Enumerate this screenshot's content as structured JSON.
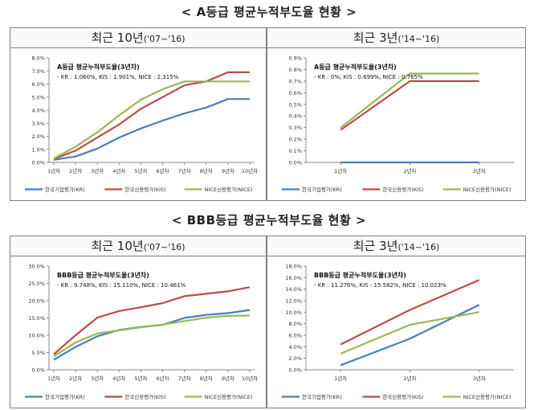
{
  "sections": [
    {
      "title": "< A등급 평균누적부도율 현황 >"
    },
    {
      "title": "< BBB등급 평균누적부도율 현황 >"
    }
  ],
  "panels": [
    {
      "head_main": "최근 10년",
      "head_sub": "('07~'16)"
    },
    {
      "head_main": "최근 3년",
      "head_sub": "('14~'16)"
    },
    {
      "head_main": "최근 10년",
      "head_sub": "('07~'16)"
    },
    {
      "head_main": "최근 3년",
      "head_sub": "('14~'16)"
    }
  ],
  "colors": {
    "KR": "#4a7ebb",
    "KIS": "#be4b48",
    "NICE": "#98b954"
  },
  "chart_data": [
    {
      "type": "line",
      "title": "A등급 평균누적부도율(3년차)",
      "subtitle": "- KR : 1.060%, KIS : 1.901%, NICE : 2.315%",
      "categories": [
        "1년차",
        "2년차",
        "3년차",
        "4년차",
        "5년차",
        "6년차",
        "7년차",
        "8년차",
        "9년차",
        "10년차"
      ],
      "yticks": [
        "0.0%",
        "1.0%",
        "2.0%",
        "3.0%",
        "4.0%",
        "5.0%",
        "6.0%",
        "7.0%",
        "8.0%"
      ],
      "ylim": [
        0,
        8
      ],
      "legend_position": "bottom",
      "series": [
        {
          "name": "한국기업평가(KR)",
          "key": "KR",
          "values": [
            0.2,
            0.45,
            1.06,
            1.9,
            2.6,
            3.2,
            3.75,
            4.2,
            4.85,
            4.85
          ]
        },
        {
          "name": "한국신용평가(KIS)",
          "key": "KIS",
          "values": [
            0.25,
            0.9,
            1.9,
            2.9,
            4.1,
            5.0,
            5.9,
            6.2,
            6.9,
            6.9
          ]
        },
        {
          "name": "NICE신용평가(NICE)",
          "key": "NICE",
          "values": [
            0.3,
            1.2,
            2.3,
            3.6,
            4.8,
            5.6,
            6.2,
            6.2,
            6.2,
            6.2
          ]
        }
      ]
    },
    {
      "type": "line",
      "title": "A등급 평균누적부도율(3년차)",
      "subtitle": "- KR : 0%, KIS : 0.699%, NICE : 0.765%",
      "categories": [
        "1년차",
        "2년차",
        "3년차"
      ],
      "yticks": [
        "0.0%",
        "0.1%",
        "0.2%",
        "0.3%",
        "0.4%",
        "0.5%",
        "0.6%",
        "0.7%",
        "0.8%",
        "0.9%"
      ],
      "ylim": [
        0,
        0.9
      ],
      "legend_position": "bottom",
      "series": [
        {
          "name": "한국기업평가(KR)",
          "key": "KR",
          "values": [
            0,
            0,
            0
          ]
        },
        {
          "name": "한국신용평가(KIS)",
          "key": "KIS",
          "values": [
            0.28,
            0.7,
            0.7
          ]
        },
        {
          "name": "NICE신용평가(NICE)",
          "key": "NICE",
          "values": [
            0.3,
            0.765,
            0.765
          ]
        }
      ]
    },
    {
      "type": "line",
      "title": "BBB등급 평균누적부도율(3년차)",
      "subtitle": "- KR : 9.748%, KIS : 15.110%, NICE : 10.461%",
      "categories": [
        "1년차",
        "2년차",
        "3년차",
        "4년차",
        "5년차",
        "6년차",
        "7년차",
        "8년차",
        "9년차",
        "10년차"
      ],
      "yticks": [
        "0.0%",
        "5.0%",
        "10.0%",
        "15.0%",
        "20.0%",
        "25.0%",
        "30.0%"
      ],
      "ylim": [
        0,
        30
      ],
      "legend_position": "bottom",
      "series": [
        {
          "name": "한국기업평가(KR)",
          "key": "KR",
          "values": [
            2.9,
            6.6,
            9.7,
            11.5,
            12.4,
            13.0,
            15.0,
            15.9,
            16.4,
            17.3
          ]
        },
        {
          "name": "한국신용평가(KIS)",
          "key": "KIS",
          "values": [
            4.5,
            10.0,
            15.1,
            17.0,
            18.1,
            19.3,
            21.3,
            22.0,
            22.7,
            23.9
          ]
        },
        {
          "name": "NICE신용평가(NICE)",
          "key": "NICE",
          "values": [
            3.9,
            7.9,
            10.5,
            11.4,
            12.3,
            13.1,
            14.1,
            15.1,
            15.6,
            15.7
          ]
        }
      ]
    },
    {
      "type": "line",
      "title": "BBB등급 평균누적부도율(3년차)",
      "subtitle": "- KR : 11.276%, KIS : 15.582%, NICE : 10.023%",
      "categories": [
        "1년차",
        "2년차",
        "3년차"
      ],
      "yticks": [
        "0.0%",
        "2.0%",
        "4.0%",
        "6.0%",
        "8.0%",
        "10.0%",
        "12.0%",
        "14.0%",
        "16.0%",
        "18.0%"
      ],
      "ylim": [
        0,
        18
      ],
      "legend_position": "bottom",
      "series": [
        {
          "name": "한국기업평가(KR)",
          "key": "KR",
          "values": [
            0.8,
            5.4,
            11.276
          ]
        },
        {
          "name": "한국신용평가(KIS)",
          "key": "KIS",
          "values": [
            4.4,
            10.4,
            15.582
          ]
        },
        {
          "name": "NICE신용평가(NICE)",
          "key": "NICE",
          "values": [
            2.8,
            7.8,
            10.023
          ]
        }
      ]
    }
  ]
}
